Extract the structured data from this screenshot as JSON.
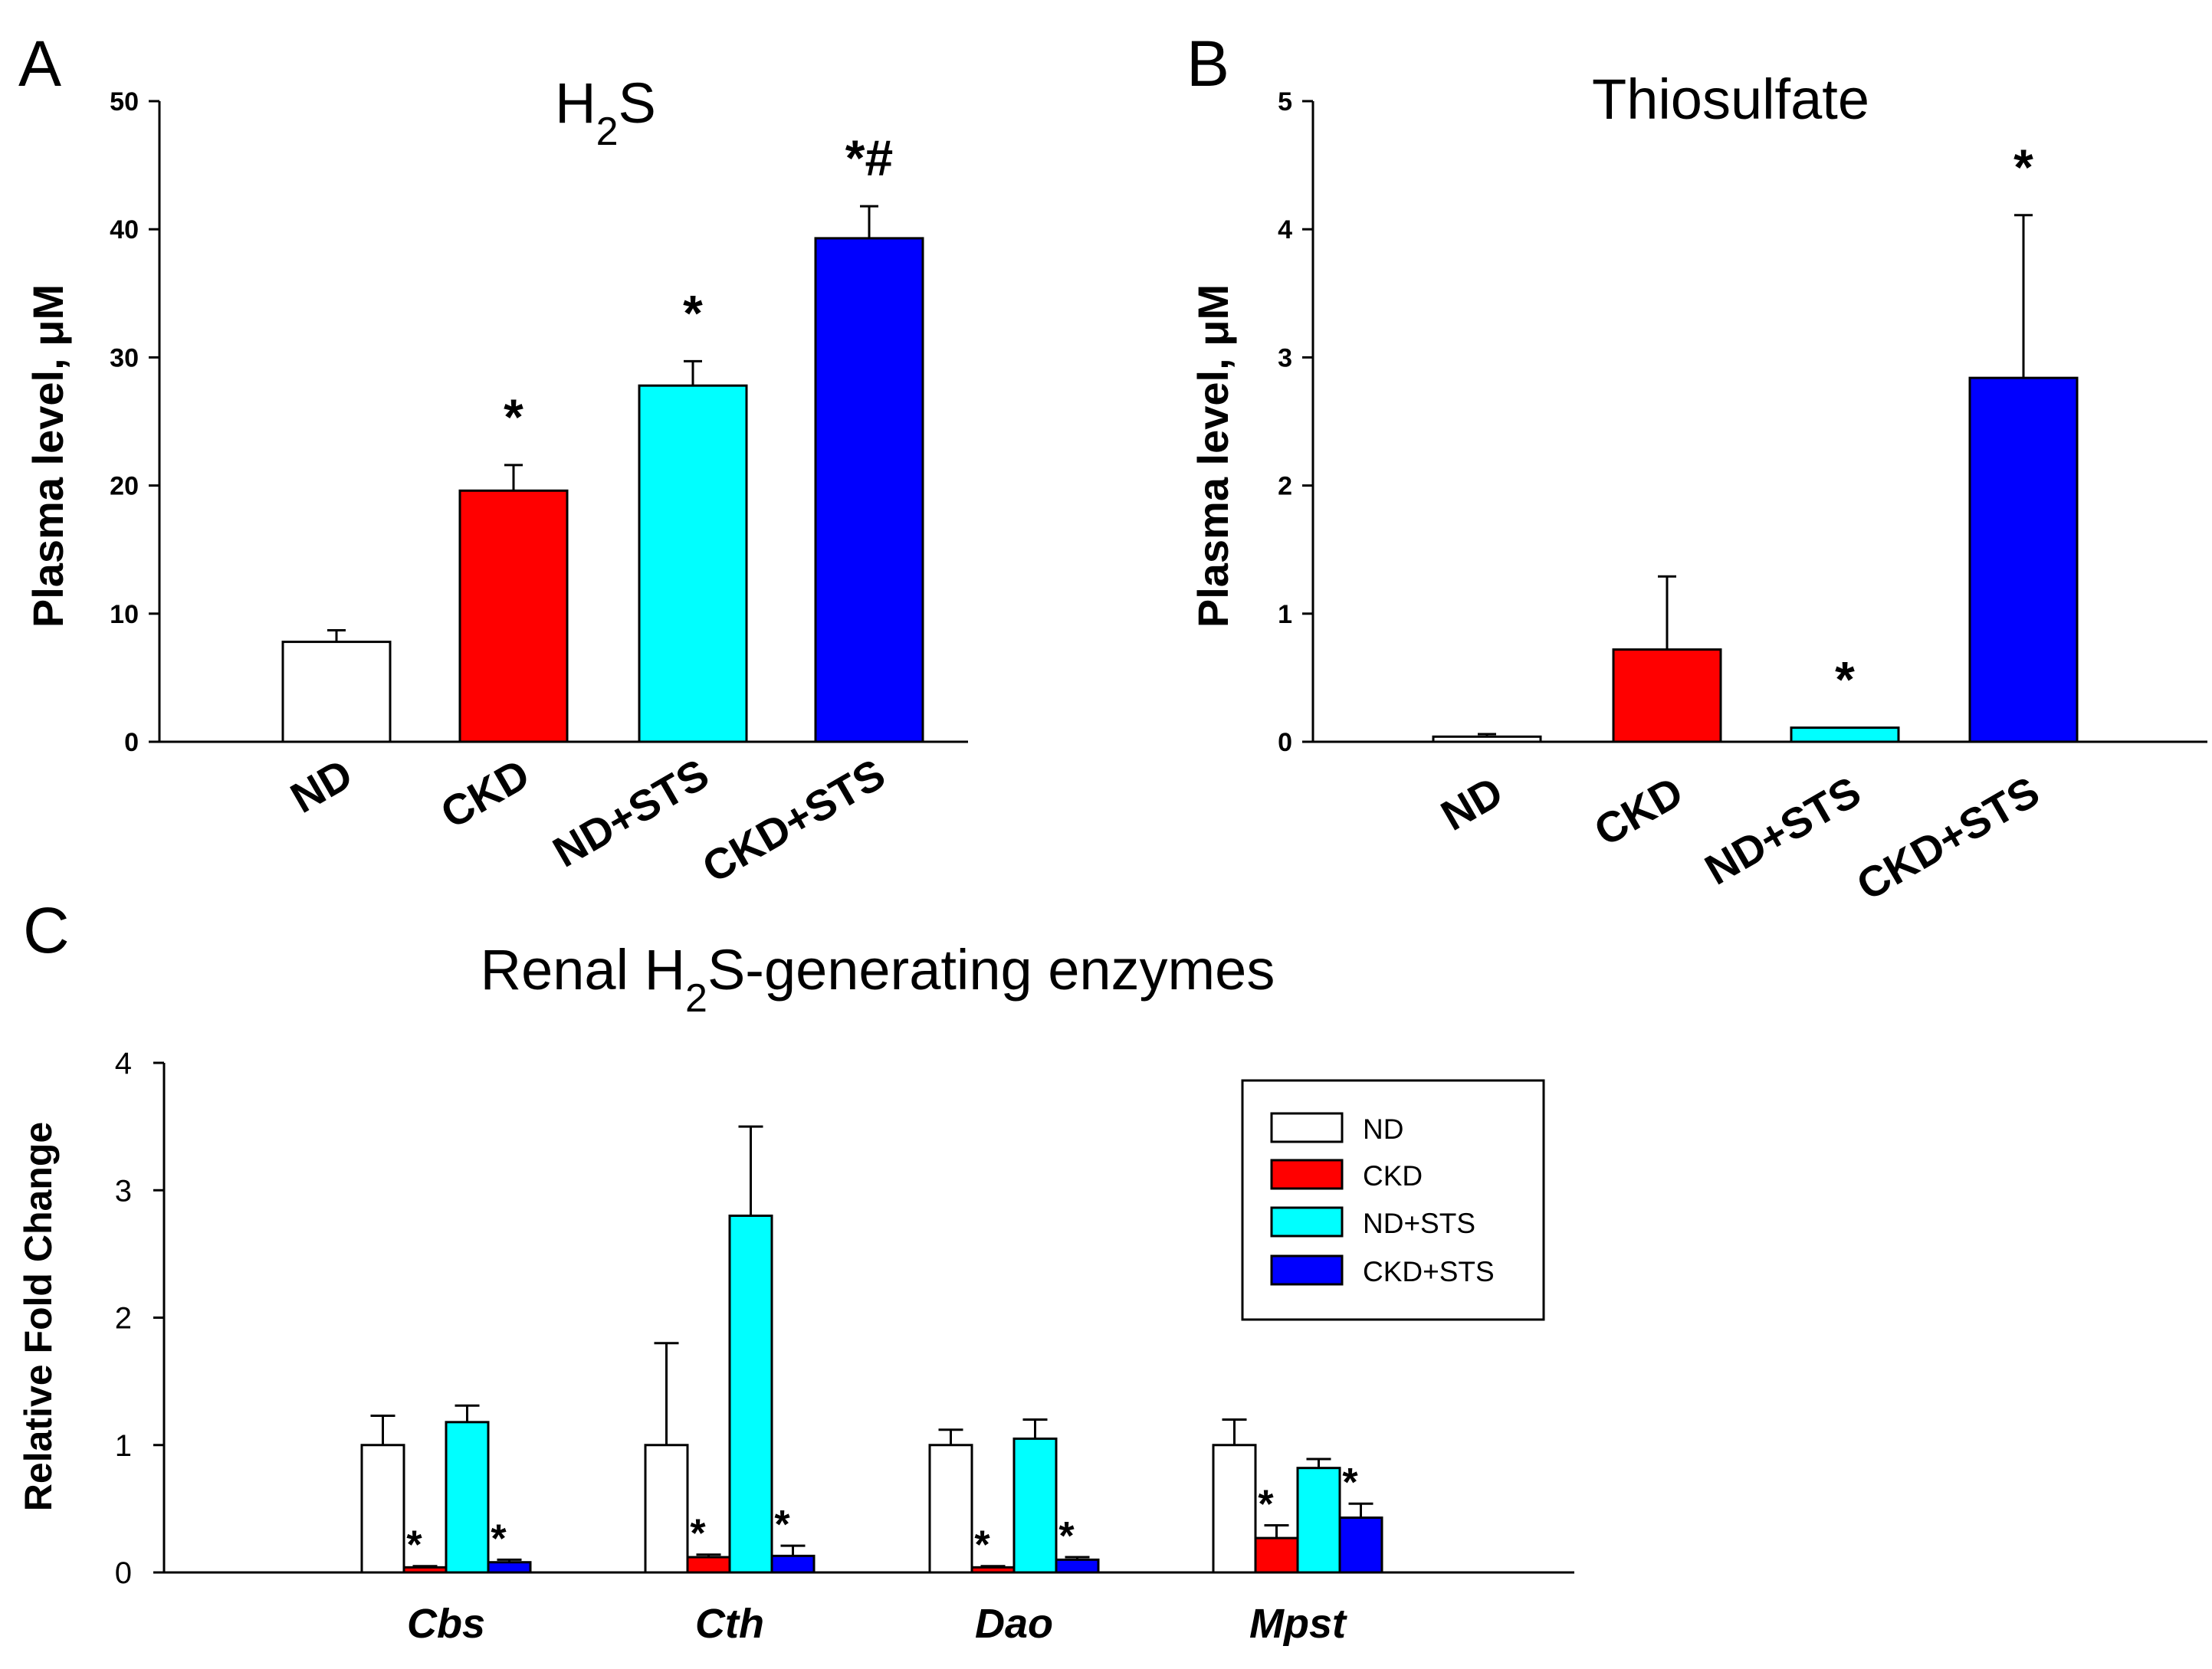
{
  "chart_data": [
    {
      "panel": "A",
      "type": "bar",
      "title_main": "H",
      "title_sub": "2",
      "title_end": "S",
      "ylabel": "Plasma level, μM",
      "categories": [
        "ND",
        "CKD",
        "ND+STS",
        "CKD+STS"
      ],
      "values": [
        7.8,
        19.6,
        27.8,
        39.3
      ],
      "errors": [
        0.9,
        2.0,
        1.9,
        2.5
      ],
      "significance": [
        "",
        "*",
        "*",
        "*#"
      ],
      "colors": [
        "#ffffff",
        "#ff0000",
        "#00ffff",
        "#0000ff"
      ],
      "ylim": [
        0,
        50
      ],
      "yticks": [
        "0",
        "10",
        "20",
        "30",
        "40",
        "50"
      ]
    },
    {
      "panel": "B",
      "type": "bar",
      "title": "Thiosulfate",
      "ylabel": "Plasma level, μM",
      "categories": [
        "ND",
        "CKD",
        "ND+STS",
        "CKD+STS"
      ],
      "values": [
        0.04,
        0.72,
        0.11,
        2.84
      ],
      "errors": [
        0.02,
        0.57,
        0.0,
        1.27
      ],
      "significance": [
        "",
        "",
        "*",
        "*"
      ],
      "colors": [
        "#ffffff",
        "#ff0000",
        "#00ffff",
        "#0000ff"
      ],
      "ylim": [
        0,
        5
      ],
      "yticks": [
        "0",
        "1",
        "2",
        "3",
        "4",
        "5"
      ]
    },
    {
      "panel": "C",
      "type": "bar",
      "title_main": "Renal H",
      "title_sub": "2",
      "title_end": "S-generating enzymes",
      "ylabel": "Relative Fold Change",
      "categories": [
        "Cbs",
        "Cth",
        "Dao",
        "Mpst"
      ],
      "series": [
        {
          "name": "ND",
          "color": "#ffffff",
          "values": [
            1.0,
            1.0,
            1.0,
            1.0
          ],
          "errors": [
            0.23,
            0.8,
            0.12,
            0.2
          ],
          "significance": [
            "",
            "",
            "",
            ""
          ]
        },
        {
          "name": "CKD",
          "color": "#ff0000",
          "values": [
            0.04,
            0.12,
            0.04,
            0.27
          ],
          "errors": [
            0.01,
            0.02,
            0.01,
            0.1
          ],
          "significance": [
            "*",
            "*",
            "*",
            "*"
          ]
        },
        {
          "name": "ND+STS",
          "color": "#00ffff",
          "values": [
            1.18,
            2.8,
            1.05,
            0.82
          ],
          "errors": [
            0.13,
            0.7,
            0.15,
            0.07
          ],
          "significance": [
            "",
            "",
            "",
            ""
          ]
        },
        {
          "name": "CKD+STS",
          "color": "#0000ff",
          "values": [
            0.08,
            0.13,
            0.1,
            0.43
          ],
          "errors": [
            0.02,
            0.08,
            0.02,
            0.11
          ],
          "significance": [
            "*",
            "*",
            "*",
            "*"
          ]
        }
      ],
      "legend": [
        "ND",
        "CKD",
        "ND+STS",
        "CKD+STS"
      ],
      "legend_position": "top-right",
      "ylim": [
        0,
        4
      ],
      "yticks": [
        "0",
        "1",
        "2",
        "3",
        "4"
      ]
    }
  ]
}
